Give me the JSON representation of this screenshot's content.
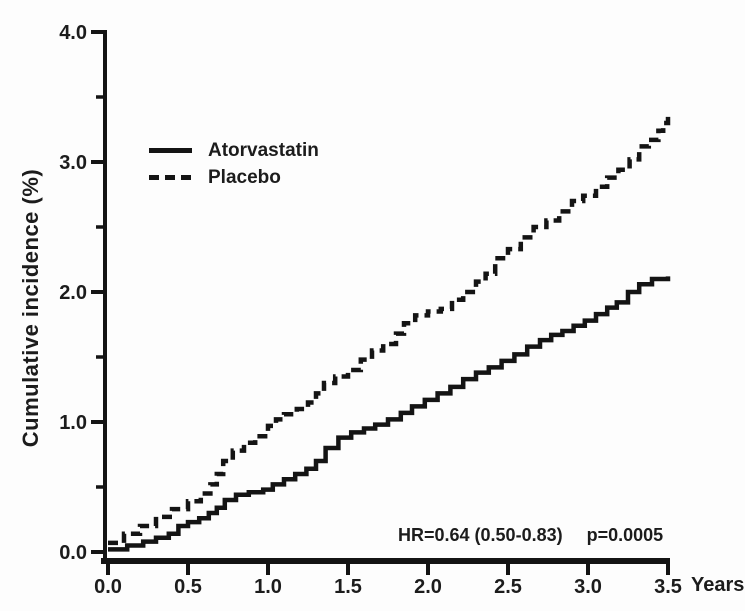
{
  "chart_data": {
    "type": "line",
    "title": "",
    "ylabel": "Cumulative incidence (%)",
    "xlabel": "Years",
    "xlim": [
      0,
      3.5
    ],
    "ylim": [
      0,
      4.0
    ],
    "x_ticks": [
      0,
      0.5,
      1,
      1.5,
      2,
      2.5,
      3,
      3.5
    ],
    "x_tick_labels": [
      "0.0",
      "0.5",
      "1.0",
      "1.5",
      "2.0",
      "2.5",
      "3.0",
      "3.5"
    ],
    "y_ticks": [
      0,
      1,
      2,
      3,
      4
    ],
    "y_tick_labels": [
      "0.0",
      "1.0",
      "2.0",
      "3.0",
      "4.0"
    ],
    "y_minor_ticks": [
      0.5,
      1.5,
      2.5,
      3.5
    ],
    "grid": false,
    "legend_position": "inside-upper-left",
    "annotation_hr": "HR=0.64 (0.50-0.83)",
    "annotation_p": "p=0.0005",
    "ink_color": "#141414",
    "series": [
      {
        "name": "Atorvastatin",
        "style": "solid",
        "points": [
          [
            0.0,
            0.02
          ],
          [
            0.12,
            0.05
          ],
          [
            0.22,
            0.08
          ],
          [
            0.3,
            0.11
          ],
          [
            0.38,
            0.14
          ],
          [
            0.44,
            0.2
          ],
          [
            0.5,
            0.23
          ],
          [
            0.57,
            0.26
          ],
          [
            0.63,
            0.3
          ],
          [
            0.68,
            0.34
          ],
          [
            0.73,
            0.4
          ],
          [
            0.8,
            0.44
          ],
          [
            0.88,
            0.46
          ],
          [
            0.97,
            0.48
          ],
          [
            1.03,
            0.52
          ],
          [
            1.1,
            0.56
          ],
          [
            1.17,
            0.6
          ],
          [
            1.24,
            0.64
          ],
          [
            1.3,
            0.7
          ],
          [
            1.36,
            0.8
          ],
          [
            1.44,
            0.88
          ],
          [
            1.52,
            0.92
          ],
          [
            1.6,
            0.95
          ],
          [
            1.67,
            0.98
          ],
          [
            1.75,
            1.02
          ],
          [
            1.83,
            1.07
          ],
          [
            1.9,
            1.12
          ],
          [
            1.98,
            1.17
          ],
          [
            2.06,
            1.22
          ],
          [
            2.14,
            1.27
          ],
          [
            2.22,
            1.33
          ],
          [
            2.3,
            1.38
          ],
          [
            2.38,
            1.42
          ],
          [
            2.46,
            1.47
          ],
          [
            2.54,
            1.52
          ],
          [
            2.62,
            1.58
          ],
          [
            2.7,
            1.63
          ],
          [
            2.77,
            1.67
          ],
          [
            2.84,
            1.7
          ],
          [
            2.91,
            1.74
          ],
          [
            2.98,
            1.78
          ],
          [
            3.05,
            1.83
          ],
          [
            3.12,
            1.88
          ],
          [
            3.18,
            1.92
          ],
          [
            3.25,
            2.0
          ],
          [
            3.32,
            2.06
          ],
          [
            3.4,
            2.1
          ],
          [
            3.5,
            2.12
          ]
        ]
      },
      {
        "name": "Placebo",
        "style": "dashed",
        "points": [
          [
            0.0,
            0.07
          ],
          [
            0.1,
            0.14
          ],
          [
            0.2,
            0.2
          ],
          [
            0.3,
            0.27
          ],
          [
            0.4,
            0.33
          ],
          [
            0.5,
            0.39
          ],
          [
            0.58,
            0.45
          ],
          [
            0.64,
            0.52
          ],
          [
            0.68,
            0.6
          ],
          [
            0.72,
            0.7
          ],
          [
            0.78,
            0.78
          ],
          [
            0.85,
            0.84
          ],
          [
            0.92,
            0.89
          ],
          [
            1.0,
            0.97
          ],
          [
            1.05,
            1.02
          ],
          [
            1.1,
            1.06
          ],
          [
            1.18,
            1.1
          ],
          [
            1.25,
            1.15
          ],
          [
            1.3,
            1.22
          ],
          [
            1.35,
            1.3
          ],
          [
            1.42,
            1.35
          ],
          [
            1.5,
            1.4
          ],
          [
            1.58,
            1.48
          ],
          [
            1.65,
            1.55
          ],
          [
            1.72,
            1.6
          ],
          [
            1.8,
            1.68
          ],
          [
            1.85,
            1.76
          ],
          [
            1.92,
            1.82
          ],
          [
            2.0,
            1.85
          ],
          [
            2.08,
            1.87
          ],
          [
            2.15,
            1.94
          ],
          [
            2.22,
            2.0
          ],
          [
            2.3,
            2.08
          ],
          [
            2.36,
            2.14
          ],
          [
            2.42,
            2.26
          ],
          [
            2.5,
            2.33
          ],
          [
            2.58,
            2.42
          ],
          [
            2.66,
            2.5
          ],
          [
            2.74,
            2.55
          ],
          [
            2.82,
            2.62
          ],
          [
            2.9,
            2.7
          ],
          [
            2.97,
            2.74
          ],
          [
            3.05,
            2.81
          ],
          [
            3.12,
            2.88
          ],
          [
            3.19,
            2.94
          ],
          [
            3.26,
            3.02
          ],
          [
            3.32,
            3.12
          ],
          [
            3.38,
            3.17
          ],
          [
            3.44,
            3.24
          ],
          [
            3.47,
            3.3
          ],
          [
            3.5,
            3.35
          ]
        ]
      }
    ]
  }
}
